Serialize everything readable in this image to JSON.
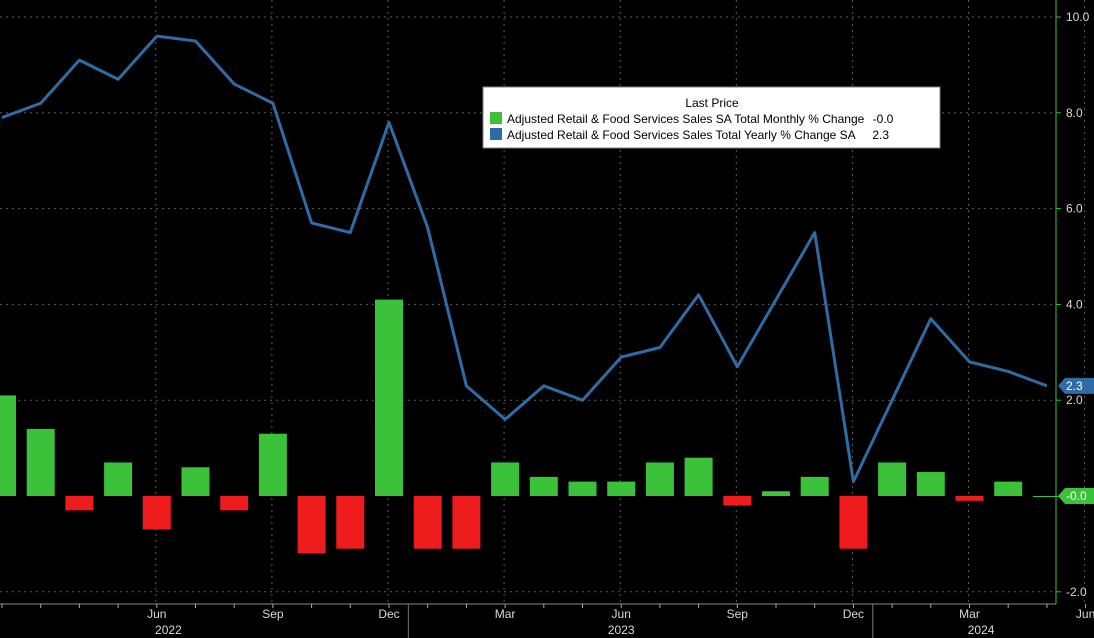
{
  "colors": {
    "background": "#000000",
    "line": "#2f6ca6",
    "positive_bar": "#3cc13b",
    "negative_bar": "#ee1c1c",
    "grid": "#5a5a5a",
    "axis": "#3cc13b"
  },
  "chart_data": {
    "type": "bar",
    "legend_title": "Last Price",
    "legend_position": "top-right",
    "grid": true,
    "ylim": [
      -2.2,
      10.2
    ],
    "y_ticks": [
      "10.0",
      "8.0",
      "6.0",
      "4.0",
      "2.0",
      "-2.0"
    ],
    "x_tick_labels": [
      "Jun",
      "Sep",
      "Dec",
      "Mar",
      "Jun",
      "Sep",
      "Dec",
      "Mar",
      "Jun"
    ],
    "year_labels": [
      "2022",
      "2023",
      "2024"
    ],
    "x": [
      "2022-02",
      "2022-03",
      "2022-04",
      "2022-05",
      "2022-06",
      "2022-07",
      "2022-08",
      "2022-09",
      "2022-10",
      "2022-11",
      "2022-12",
      "2023-01",
      "2023-02",
      "2023-03",
      "2023-04",
      "2023-05",
      "2023-06",
      "2023-07",
      "2023-08",
      "2023-09",
      "2023-10",
      "2023-11",
      "2023-12",
      "2024-01",
      "2024-02",
      "2024-03",
      "2024-04",
      "2024-05",
      "2024-06"
    ],
    "series": [
      {
        "name": "Adjusted Retail & Food Services Sales SA Total Monthly % Change",
        "legend_value": "-0.0",
        "end_tag": "-0.0",
        "chart_type": "bar",
        "values": [
          2.1,
          1.4,
          -0.3,
          0.7,
          -0.7,
          0.6,
          -0.3,
          1.3,
          -1.2,
          -1.1,
          4.1,
          -1.1,
          -1.1,
          0.7,
          0.4,
          0.3,
          0.3,
          0.7,
          0.8,
          -0.2,
          0.1,
          0.4,
          -1.1,
          0.7,
          0.5,
          -0.1,
          0.3,
          -0.0,
          null
        ]
      },
      {
        "name": "Adjusted Retail & Food Services Sales Total Yearly % Change SA",
        "legend_value": "2.3",
        "end_tag": "2.3",
        "chart_type": "line",
        "values": [
          7.9,
          8.2,
          9.1,
          8.7,
          9.6,
          9.5,
          8.6,
          8.2,
          5.7,
          5.5,
          7.8,
          5.6,
          2.3,
          1.6,
          2.3,
          2.0,
          2.9,
          3.1,
          4.2,
          2.7,
          4.1,
          5.5,
          0.3,
          2.0,
          3.7,
          2.8,
          2.6,
          2.3,
          null
        ]
      }
    ]
  }
}
